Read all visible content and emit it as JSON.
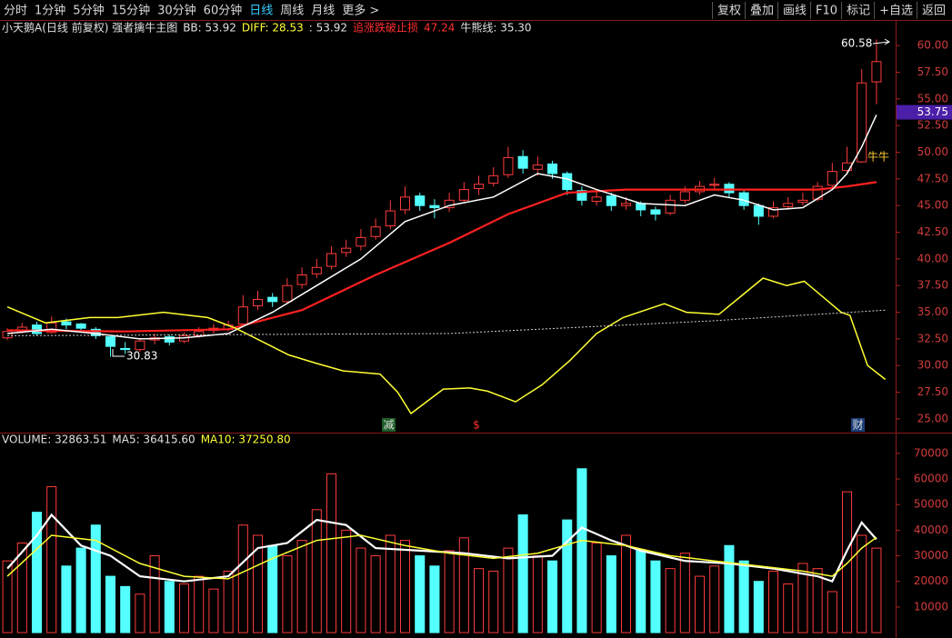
{
  "toolbar": {
    "left": [
      "分时",
      "1分钟",
      "5分钟",
      "15分钟",
      "30分钟",
      "60分钟",
      "日线",
      "周线",
      "月线",
      "更多 >"
    ],
    "active": "日线",
    "right": [
      "复权",
      "叠加",
      "画线",
      "F10",
      "标记",
      "+自选",
      "返回"
    ]
  },
  "chart_data": [
    {
      "type": "candlestick",
      "title": "小天鹅A(日线 前复权) 强者擒牛主图",
      "indicators": [
        {
          "text": "BB: 53.92",
          "color": "#e0e0e0"
        },
        {
          "text": "DIFF: 28.53",
          "color": "#ffff33"
        },
        {
          "text": ": 53.92",
          "color": "#e0e0e0"
        },
        {
          "text": "追涨跌破止损",
          "color": "#ff3030"
        },
        {
          "text": "47.24",
          "color": "#ff3030"
        },
        {
          "text": "牛熊线: 35.30",
          "color": "#e0e0e0"
        }
      ],
      "open": [
        32.6,
        33.2,
        33.8,
        33.1,
        34.1,
        33.9,
        33.4,
        32.7,
        31.6,
        31.5,
        32.4,
        32.7,
        32.3,
        32.8,
        33.3,
        33.4,
        33.9,
        35.6,
        36.4,
        36.0,
        37.6,
        38.6,
        39.3,
        40.6,
        41.2,
        42.1,
        43.1,
        44.6,
        45.9,
        45.0,
        44.8,
        45.5,
        46.6,
        47.1,
        47.9,
        49.6,
        48.4,
        48.9,
        48.0,
        46.4,
        45.4,
        45.9,
        45.0,
        45.2,
        44.6,
        44.3,
        45.5,
        46.3,
        46.9,
        47.0,
        46.2,
        45.0,
        44.0,
        44.9,
        45.3,
        45.6,
        46.9,
        48.3,
        49.1,
        56.6
      ],
      "high": [
        33.5,
        34.0,
        34.1,
        34.6,
        34.4,
        34.0,
        33.6,
        32.9,
        32.2,
        32.6,
        33.0,
        32.9,
        33.1,
        33.6,
        33.9,
        34.2,
        36.6,
        37.0,
        36.8,
        38.2,
        39.2,
        40.0,
        41.2,
        41.8,
        42.8,
        43.8,
        45.5,
        46.8,
        46.2,
        45.6,
        46.2,
        47.2,
        47.8,
        48.6,
        50.5,
        50.2,
        49.6,
        49.2,
        48.2,
        46.8,
        46.5,
        46.2,
        45.8,
        45.4,
        44.9,
        46.0,
        46.8,
        47.3,
        47.6,
        47.2,
        46.4,
        45.2,
        45.4,
        45.8,
        46.2,
        47.2,
        49.0,
        50.5,
        57.8,
        60.58
      ],
      "low": [
        32.4,
        33.0,
        32.8,
        33.0,
        33.4,
        33.1,
        32.5,
        30.83,
        31.1,
        31.3,
        32.0,
        31.9,
        32.1,
        32.6,
        33.0,
        33.2,
        33.8,
        35.2,
        35.5,
        35.8,
        37.2,
        38.2,
        39.0,
        40.2,
        40.8,
        41.8,
        42.8,
        44.2,
        44.5,
        43.8,
        44.4,
        45.2,
        46.0,
        46.8,
        47.6,
        48.0,
        47.8,
        47.5,
        46.0,
        45.0,
        45.0,
        44.5,
        44.6,
        44.0,
        43.6,
        44.1,
        45.2,
        46.0,
        46.4,
        45.8,
        44.6,
        43.2,
        43.8,
        44.6,
        45.0,
        45.4,
        46.6,
        48.0,
        49.0,
        54.5
      ],
      "close": [
        33.2,
        33.6,
        33.0,
        34.0,
        33.8,
        33.5,
        32.8,
        31.8,
        31.5,
        32.3,
        32.6,
        32.2,
        32.8,
        33.2,
        33.5,
        33.8,
        35.5,
        36.2,
        36.0,
        37.5,
        38.5,
        39.2,
        40.5,
        41.0,
        42.0,
        43.0,
        44.5,
        45.8,
        45.0,
        44.8,
        45.5,
        46.5,
        47.0,
        47.8,
        49.5,
        48.5,
        48.8,
        48.0,
        46.5,
        45.5,
        45.8,
        45.0,
        45.2,
        44.6,
        44.2,
        45.5,
        46.3,
        46.8,
        47.0,
        46.2,
        45.0,
        44.0,
        44.8,
        45.2,
        45.5,
        46.8,
        48.2,
        49.0,
        56.5,
        58.5
      ],
      "up_color": "#ff3b3b",
      "down_color": "#54ffff",
      "xlim": [
        -0.5,
        60.3
      ],
      "ylim": [
        23.8,
        62.4
      ],
      "yticks": [
        {
          "value": 25,
          "label": "25.00"
        },
        {
          "value": 27.5,
          "label": "27.50"
        },
        {
          "value": 30,
          "label": "30.00"
        },
        {
          "value": 32.5,
          "label": "32.50"
        },
        {
          "value": 35,
          "label": "35.00"
        },
        {
          "value": 37.5,
          "label": "37.50"
        },
        {
          "value": 40,
          "label": "40.00"
        },
        {
          "value": 42.5,
          "label": "42.50"
        },
        {
          "value": 45,
          "label": "45.00"
        },
        {
          "value": 47.5,
          "label": "47.50"
        },
        {
          "value": 50,
          "label": "50.00"
        },
        {
          "value": 52.5,
          "label": "52.50"
        },
        {
          "value": 55,
          "label": "55.00"
        },
        {
          "value": 57.5,
          "label": "57.50"
        },
        {
          "value": 60,
          "label": "60.00"
        }
      ],
      "lines": [
        {
          "color": "#ff2020",
          "style": "solid",
          "x": [
            0,
            8,
            15,
            20,
            25,
            30,
            34,
            38,
            42,
            50,
            55,
            57,
            59
          ],
          "values": [
            33.3,
            33.2,
            33.4,
            35.2,
            38.5,
            41.5,
            44.2,
            46.2,
            46.5,
            46.5,
            46.5,
            46.8,
            47.2
          ]
        },
        {
          "color": "#ffffff",
          "style": "solid",
          "x": [
            0,
            3,
            6,
            9,
            12,
            15,
            18,
            21,
            24,
            27,
            30,
            33,
            36,
            38,
            40,
            43,
            46,
            48,
            50,
            52,
            54,
            56,
            57,
            58,
            59
          ],
          "values": [
            33.0,
            33.4,
            33.0,
            32.5,
            32.6,
            33.0,
            35.0,
            37.5,
            40.0,
            43.5,
            45.0,
            45.8,
            48.0,
            47.5,
            46.5,
            45.2,
            45.0,
            46.0,
            45.5,
            44.6,
            44.8,
            46.5,
            48.0,
            50.5,
            53.5
          ]
        },
        {
          "color": "#ffff33",
          "style": "solid",
          "x": [
            0,
            2.6,
            5.6,
            7.5,
            10.6,
            13.6,
            15.5,
            19.1,
            21,
            22.8,
            25.3,
            26.5,
            27.4,
            29.6,
            31.4,
            32.6,
            34.5,
            36.3,
            38.2,
            40,
            41.8,
            44.6,
            46.1,
            48.3,
            49.8,
            51.3,
            52.9,
            54.1,
            56.6,
            57.2,
            58.4,
            59.6
          ],
          "values": [
            35.5,
            34.0,
            34.5,
            34.5,
            35.0,
            34.5,
            33.5,
            31.0,
            30.2,
            29.5,
            29.2,
            27.5,
            25.5,
            27.8,
            27.9,
            27.6,
            26.6,
            28.2,
            30.5,
            33.0,
            34.5,
            35.8,
            35.0,
            34.8,
            36.5,
            38.2,
            37.5,
            37.9,
            35.0,
            34.7,
            30.0,
            28.7
          ]
        },
        {
          "color": "#cfcfcf",
          "style": "dotted",
          "x": [
            0,
            30,
            48,
            59.6
          ],
          "values": [
            32.8,
            33.0,
            34.2,
            35.2
          ]
        }
      ],
      "price_marker": {
        "value": 53.75,
        "label": "53.75"
      },
      "annotations": [
        {
          "text": "60.58"
        },
        {
          "text": "30.83"
        },
        {
          "text": "牛牛"
        },
        {
          "text": "减"
        },
        {
          "text": "$"
        },
        {
          "text": "财"
        }
      ]
    },
    {
      "type": "bar",
      "title": "VOLUME: 32863.51",
      "indicators": [
        {
          "text": "MA5: 36415.60",
          "color": "#e0e0e0"
        },
        {
          "text": "MA10: 37250.80",
          "color": "#ffff33"
        }
      ],
      "values": [
        28000,
        35000,
        47000,
        57000,
        26000,
        33000,
        42000,
        22000,
        18000,
        15000,
        30000,
        20000,
        19000,
        22000,
        17000,
        24000,
        42000,
        38000,
        34000,
        30000,
        36000,
        48000,
        62000,
        40000,
        33000,
        30000,
        38000,
        36000,
        30000,
        26000,
        32000,
        37000,
        25000,
        24000,
        33000,
        46000,
        30000,
        28000,
        44000,
        64000,
        35000,
        30000,
        38000,
        32000,
        28000,
        25000,
        31000,
        22000,
        26000,
        34000,
        28000,
        20000,
        24000,
        19000,
        27000,
        25000,
        16000,
        55000,
        38000,
        33000
      ],
      "xlim": [
        -0.5,
        60.3
      ],
      "ylim": [
        -1400,
        77400
      ],
      "yticks": [
        10000,
        20000,
        30000,
        40000,
        50000,
        60000,
        70000
      ],
      "lines": [
        {
          "color": "#ffffff",
          "style": "solid",
          "x": [
            0,
            2,
            3,
            5,
            7,
            9,
            12,
            15,
            17,
            19,
            21,
            23,
            25,
            28,
            31,
            34,
            37,
            39,
            41,
            43,
            46,
            49,
            52,
            55,
            56,
            57,
            58,
            59
          ],
          "values": [
            25000,
            38000,
            46000,
            34000,
            30000,
            22000,
            20000,
            22000,
            33000,
            35000,
            44000,
            42000,
            33000,
            32000,
            31000,
            29000,
            30000,
            41000,
            36000,
            32000,
            28000,
            27000,
            25000,
            22000,
            20000,
            32000,
            43000,
            36400
          ]
        },
        {
          "color": "#ffff33",
          "style": "solid",
          "x": [
            0,
            3,
            6,
            9,
            12,
            15,
            18,
            21,
            24,
            27,
            30,
            33,
            36,
            39,
            42,
            45,
            48,
            51,
            54,
            56,
            57,
            58,
            59
          ],
          "values": [
            22000,
            38000,
            36000,
            27000,
            22000,
            21000,
            29000,
            36000,
            38000,
            34000,
            31000,
            29000,
            31000,
            36000,
            34000,
            30000,
            28000,
            26000,
            24000,
            22000,
            27000,
            33000,
            37200
          ]
        }
      ]
    }
  ]
}
